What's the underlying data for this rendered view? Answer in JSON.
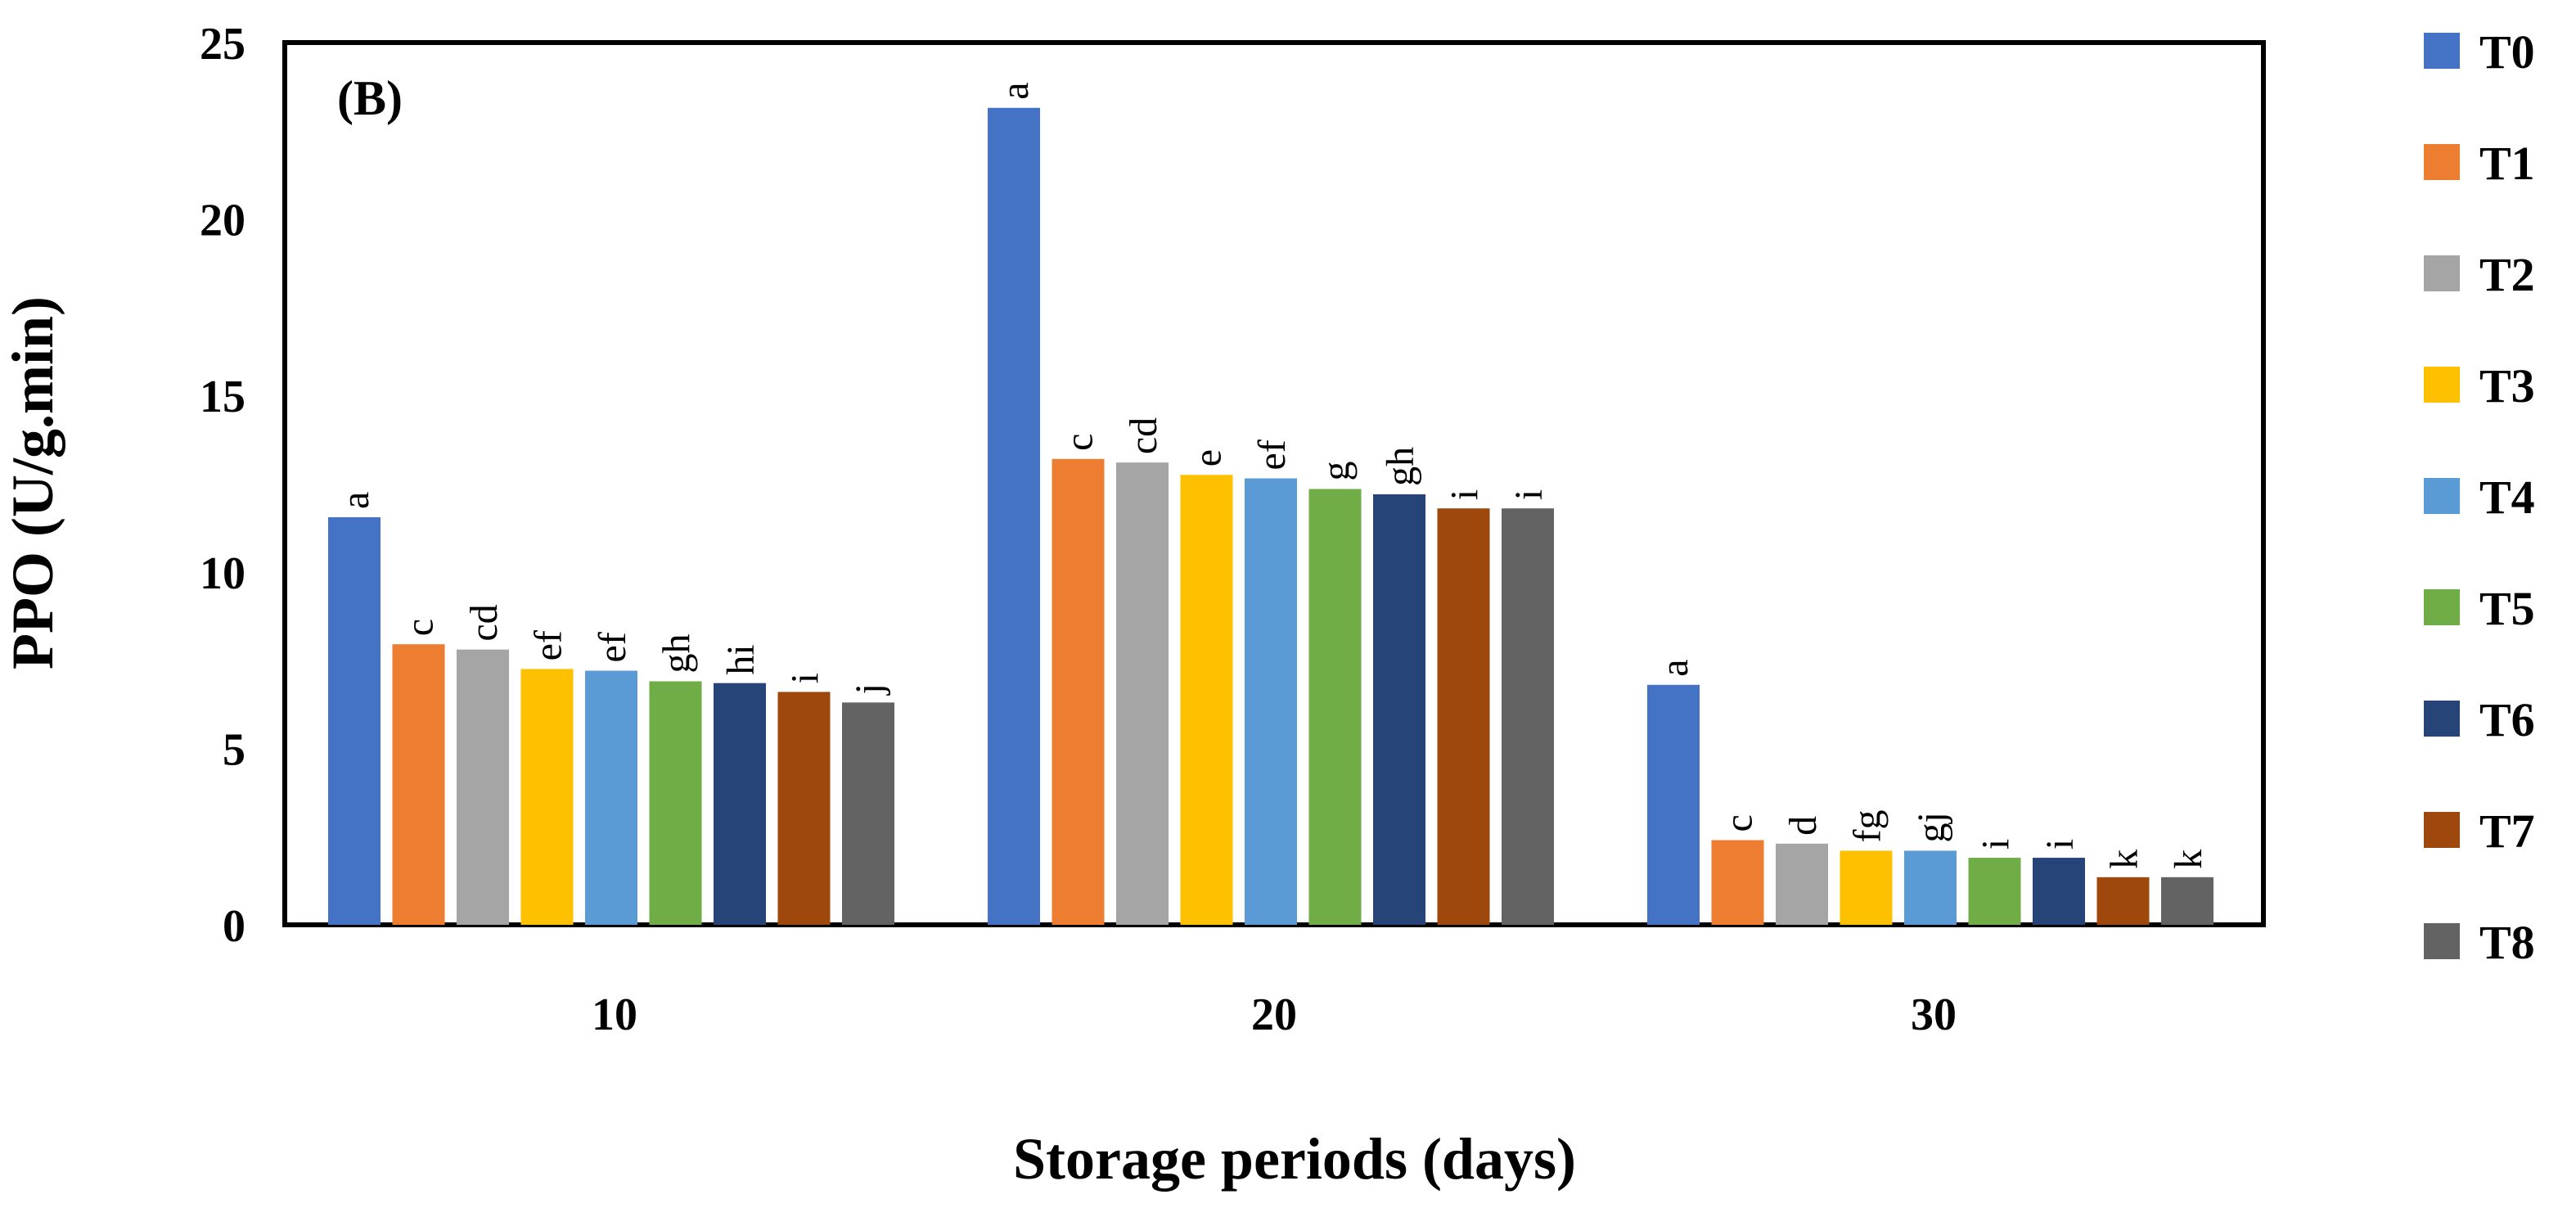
{
  "chart_data": {
    "type": "bar",
    "panel_label": "(B)",
    "title": "",
    "xlabel": "Storage periods (days)",
    "ylabel": "PPO (U/g.min)",
    "ylim": [
      0,
      25
    ],
    "yticks": [
      "0",
      "5",
      "10",
      "15",
      "20",
      "25"
    ],
    "grid": false,
    "legend_position": "right",
    "categories": [
      "10",
      "20",
      "30"
    ],
    "series": [
      {
        "name": "T0",
        "color": "#4472C4",
        "values": [
          11.55,
          23.15,
          6.8
        ],
        "labels": [
          "a",
          "a",
          "a"
        ]
      },
      {
        "name": "T1",
        "color": "#ED7D31",
        "values": [
          7.95,
          13.2,
          2.4
        ],
        "labels": [
          "c",
          "c",
          "c"
        ]
      },
      {
        "name": "T2",
        "color": "#A5A5A5",
        "values": [
          7.8,
          13.1,
          2.3
        ],
        "labels": [
          "cd",
          "cd",
          "d"
        ]
      },
      {
        "name": "T3",
        "color": "#FFC000",
        "values": [
          7.25,
          12.75,
          2.1
        ],
        "labels": [
          "ef",
          "e",
          "fg"
        ]
      },
      {
        "name": "T4",
        "color": "#5B9BD5",
        "values": [
          7.2,
          12.65,
          2.1
        ],
        "labels": [
          "ef",
          "ef",
          "gj"
        ]
      },
      {
        "name": "T5",
        "color": "#70AD47",
        "values": [
          6.9,
          12.35,
          1.9
        ],
        "labels": [
          "gh",
          "g",
          "i"
        ]
      },
      {
        "name": "T6",
        "color": "#264478",
        "values": [
          6.85,
          12.2,
          1.9
        ],
        "labels": [
          "hi",
          "gh",
          "i"
        ]
      },
      {
        "name": "T7",
        "color": "#9E480E",
        "values": [
          6.6,
          11.8,
          1.35
        ],
        "labels": [
          "i",
          "i",
          "k"
        ]
      },
      {
        "name": "T8",
        "color": "#636363",
        "values": [
          6.3,
          11.8,
          1.35
        ],
        "labels": [
          "j",
          "i",
          "k"
        ]
      }
    ]
  }
}
